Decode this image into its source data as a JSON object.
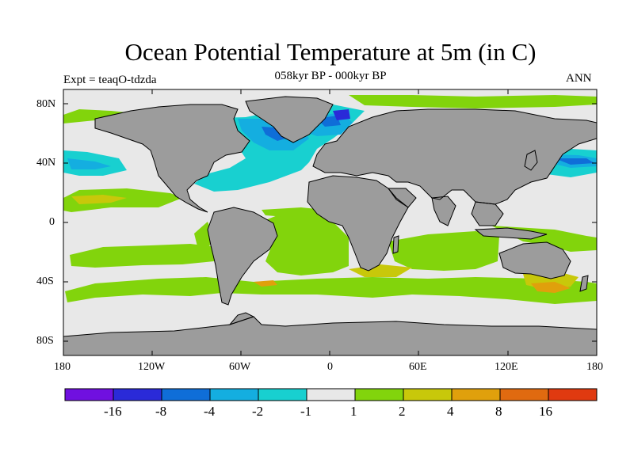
{
  "title": "Ocean Potential Temperature at 5m (in C)",
  "subtitle": "058kyr BP - 000kyr BP",
  "left_label": "Expt = teaqO-tdzda",
  "right_label": "ANN",
  "lat_ticks": [
    "80N",
    "40N",
    "0",
    "40S",
    "80S"
  ],
  "lon_ticks": [
    "180",
    "120W",
    "60W",
    "0",
    "60E",
    "120E",
    "180"
  ],
  "colorbar": {
    "colors": [
      "#7010e0",
      "#2a2ad8",
      "#0f6ed8",
      "#14aee0",
      "#18d0d0",
      "#e8e8e8",
      "#82d40c",
      "#c8c80a",
      "#e0a00c",
      "#e06a10",
      "#e03a10"
    ],
    "labels": [
      "-16",
      "-8",
      "-4",
      "-2",
      "-1",
      "1",
      "2",
      "4",
      "8",
      "16"
    ]
  },
  "palette": {
    "land": "#9c9c9c",
    "neutral": "#e8e8e8",
    "warm1": "#82d40c",
    "warm2": "#c8c80a",
    "warm3": "#e0a00c",
    "cool1": "#18d0d0",
    "cool2": "#14aee0",
    "cool3": "#0f6ed8",
    "cool4": "#2a2ad8"
  }
}
